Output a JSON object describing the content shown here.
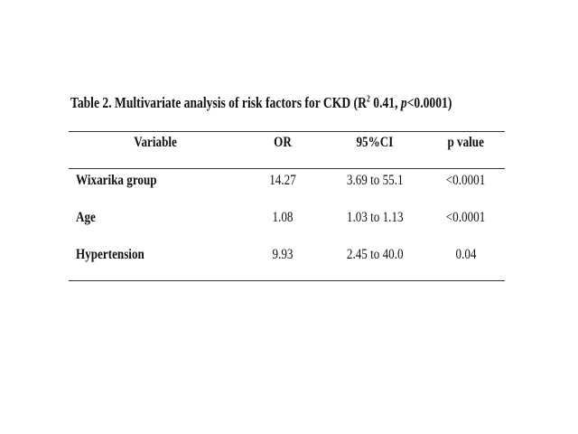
{
  "title": {
    "prefix": "Table 2. Multivariate analysis of risk factors for CKD (R",
    "superscript": "2",
    "middle": " 0.41, ",
    "italic": "p",
    "suffix": "<0.0001)"
  },
  "table": {
    "headers": [
      "Variable",
      "OR",
      "95%CI",
      "p value"
    ],
    "rows": [
      [
        "Wixarika group",
        "14.27",
        "3.69 to 55.1",
        "<0.0001"
      ],
      [
        "Age",
        "1.08",
        "1.03 to 1.13",
        "<0.0001"
      ],
      [
        "Hypertension",
        "9.93",
        "2.45 to 40.0",
        "0.04"
      ]
    ]
  }
}
